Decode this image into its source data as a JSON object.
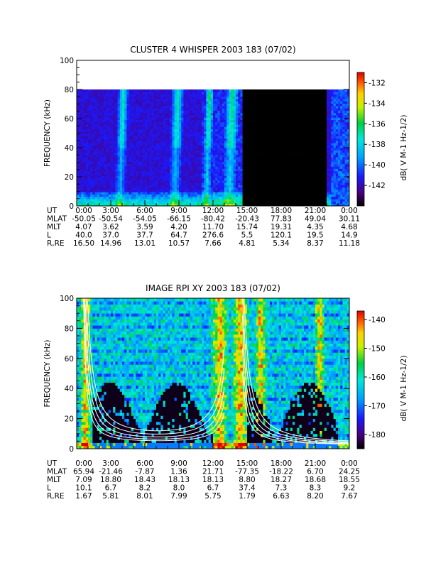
{
  "chart_data": [
    {
      "type": "heatmap",
      "title": "CLUSTER 4 WHISPER 2003 183 (07/02)",
      "ylabel": "FREQUENCY (kHz)",
      "ylim": [
        0,
        100
      ],
      "y_ticks": [
        "0",
        "20",
        "40",
        "60",
        "80",
        "100"
      ],
      "x_ticks": [
        "0:00",
        "3:00",
        "6:00",
        "9:00",
        "12:00",
        "15:00",
        "18:00",
        "21:00",
        "0:00"
      ],
      "colorbar": {
        "label": "dB( V M-1 Hz-1/2)",
        "range": [
          -144,
          -131
        ],
        "ticks": [
          "-132",
          "-134",
          "-136",
          "-138",
          "-140",
          "-142"
        ]
      },
      "data_ceiling_khz": 80,
      "data_gap_hours": [
        14.6,
        22.0
      ],
      "ephemeris": [
        {
          "name": "UT",
          "values": [
            "0:00",
            "3:00",
            "6:00",
            "9:00",
            "12:00",
            "15:00",
            "18:00",
            "21:00",
            "0:00"
          ]
        },
        {
          "name": "MLAT",
          "values": [
            "-50.05",
            "-50.54",
            "-54.05",
            "-66.15",
            "-80.42",
            "-20.43",
            "77.83",
            "49.04",
            "30.11"
          ]
        },
        {
          "name": "MLT",
          "values": [
            "4.07",
            "3.62",
            "3.59",
            "4.20",
            "11.70",
            "15.74",
            "19.31",
            "4.35",
            "4.68"
          ]
        },
        {
          "name": "L",
          "values": [
            "40.0",
            "37.0",
            "37.7",
            "64.7",
            "276.6",
            "5.5",
            "120.1",
            "19.5",
            "14.9"
          ]
        },
        {
          "name": "R,RE",
          "values": [
            "16.50",
            "14.96",
            "13.01",
            "10.57",
            "7.66",
            "4.81",
            "5.34",
            "8.37",
            "11.18"
          ]
        }
      ]
    },
    {
      "type": "heatmap",
      "title": "IMAGE RPI XY 2003 183 (07/02)",
      "ylabel": "FREQUENCY (kHz)",
      "ylim": [
        0,
        100
      ],
      "y_ticks": [
        "0",
        "20",
        "40",
        "60",
        "80",
        "100"
      ],
      "x_ticks": [
        "0:00",
        "3:00",
        "6:00",
        "9:00",
        "12:00",
        "15:00",
        "18:00",
        "21:00",
        "0:00"
      ],
      "colorbar": {
        "label": "dB( V M-1 Hz-1/2)",
        "range": [
          -185,
          -137
        ],
        "ticks": [
          "-140",
          "-150",
          "-160",
          "-170",
          "-180"
        ]
      },
      "ephemeris": [
        {
          "name": "UT",
          "values": [
            "0:00",
            "3:00",
            "6:00",
            "9:00",
            "12:00",
            "15:00",
            "18:00",
            "21:00",
            "0:00"
          ]
        },
        {
          "name": "MLAT",
          "values": [
            "65.94",
            "-21.46",
            "-7.87",
            "1.36",
            "21.71",
            "-77.35",
            "-18.22",
            "6.70",
            "24.25"
          ]
        },
        {
          "name": "MLT",
          "values": [
            "7.09",
            "18.80",
            "18.43",
            "18.13",
            "18.13",
            "8.80",
            "18.27",
            "18.68",
            "18.55"
          ]
        },
        {
          "name": "L",
          "values": [
            "10.1",
            "6.7",
            "8.2",
            "8.0",
            "6.7",
            "37.4",
            "7.3",
            "8.3",
            "9.2"
          ]
        },
        {
          "name": "R,RE",
          "values": [
            "1.67",
            "5.81",
            "8.01",
            "7.99",
            "5.75",
            "1.79",
            "6.63",
            "8.20",
            "7.67"
          ]
        }
      ]
    }
  ]
}
